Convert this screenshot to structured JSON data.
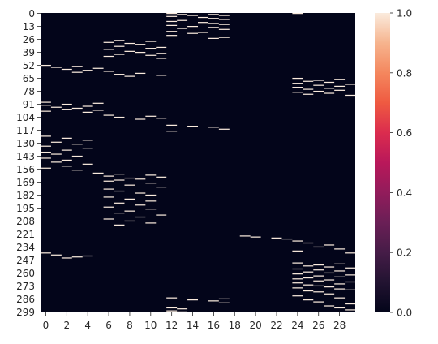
{
  "chart_data": {
    "type": "heatmap",
    "title": "",
    "xlabel": "",
    "ylabel": "",
    "n_rows": 300,
    "n_cols": 30,
    "x_tick_labels": [
      "0",
      "2",
      "4",
      "6",
      "8",
      "10",
      "12",
      "14",
      "16",
      "18",
      "20",
      "22",
      "24",
      "26",
      "28"
    ],
    "y_tick_labels": [
      "0",
      "13",
      "26",
      "39",
      "52",
      "65",
      "78",
      "91",
      "104",
      "117",
      "130",
      "143",
      "156",
      "169",
      "182",
      "195",
      "208",
      "221",
      "234",
      "247",
      "260",
      "273",
      "286",
      "299"
    ],
    "colorbar": {
      "min": 0.0,
      "max": 1.0,
      "tick_labels": [
        "0.0",
        "0.2",
        "0.4",
        "0.6",
        "0.8",
        "1.0"
      ],
      "colormap": "rocket"
    },
    "ones": [
      [
        0,
        12
      ],
      [
        0,
        24
      ],
      [
        1,
        13
      ],
      [
        1,
        16
      ],
      [
        2,
        14
      ],
      [
        2,
        17
      ],
      [
        3,
        12
      ],
      [
        4,
        15
      ],
      [
        5,
        16
      ],
      [
        6,
        17
      ],
      [
        7,
        13
      ],
      [
        8,
        12
      ],
      [
        9,
        15
      ],
      [
        10,
        16
      ],
      [
        11,
        17
      ],
      [
        12,
        12
      ],
      [
        13,
        14
      ],
      [
        14,
        16
      ],
      [
        15,
        13
      ],
      [
        16,
        17
      ],
      [
        18,
        12
      ],
      [
        19,
        15
      ],
      [
        20,
        14
      ],
      [
        22,
        12
      ],
      [
        24,
        17
      ],
      [
        25,
        16
      ],
      [
        27,
        7
      ],
      [
        28,
        10
      ],
      [
        29,
        6
      ],
      [
        30,
        8
      ],
      [
        31,
        9
      ],
      [
        33,
        7
      ],
      [
        34,
        11
      ],
      [
        35,
        10
      ],
      [
        36,
        6
      ],
      [
        38,
        8
      ],
      [
        39,
        9
      ],
      [
        40,
        11
      ],
      [
        41,
        7
      ],
      [
        42,
        10
      ],
      [
        43,
        6
      ],
      [
        45,
        11
      ],
      [
        52,
        0
      ],
      [
        53,
        3
      ],
      [
        54,
        1
      ],
      [
        55,
        5
      ],
      [
        56,
        2
      ],
      [
        57,
        4
      ],
      [
        58,
        6
      ],
      [
        59,
        3
      ],
      [
        60,
        9
      ],
      [
        61,
        7
      ],
      [
        62,
        11
      ],
      [
        63,
        8
      ],
      [
        65,
        24
      ],
      [
        66,
        28
      ],
      [
        67,
        26
      ],
      [
        68,
        25
      ],
      [
        69,
        27
      ],
      [
        70,
        24
      ],
      [
        71,
        29
      ],
      [
        72,
        26
      ],
      [
        73,
        28
      ],
      [
        74,
        24
      ],
      [
        75,
        27
      ],
      [
        76,
        25
      ],
      [
        77,
        28
      ],
      [
        78,
        26
      ],
      [
        79,
        24
      ],
      [
        80,
        27
      ],
      [
        81,
        25
      ],
      [
        82,
        29
      ],
      [
        89,
        0
      ],
      [
        90,
        5
      ],
      [
        91,
        2
      ],
      [
        92,
        0
      ],
      [
        93,
        4
      ],
      [
        94,
        1
      ],
      [
        95,
        3
      ],
      [
        96,
        2
      ],
      [
        97,
        5
      ],
      [
        98,
        0
      ],
      [
        99,
        4
      ],
      [
        102,
        6
      ],
      [
        103,
        10
      ],
      [
        104,
        7
      ],
      [
        105,
        11
      ],
      [
        106,
        9
      ],
      [
        112,
        12
      ],
      [
        113,
        14
      ],
      [
        114,
        16
      ],
      [
        116,
        17
      ],
      [
        118,
        12
      ],
      [
        123,
        0
      ],
      [
        125,
        2
      ],
      [
        127,
        4
      ],
      [
        129,
        1
      ],
      [
        131,
        3
      ],
      [
        133,
        0
      ],
      [
        135,
        4
      ],
      [
        137,
        2
      ],
      [
        139,
        0
      ],
      [
        141,
        1
      ],
      [
        143,
        3
      ],
      [
        145,
        0
      ],
      [
        147,
        2
      ],
      [
        149,
        1
      ],
      [
        151,
        4
      ],
      [
        153,
        2
      ],
      [
        155,
        0
      ],
      [
        157,
        3
      ],
      [
        160,
        5
      ],
      [
        161,
        7
      ],
      [
        162,
        10
      ],
      [
        163,
        6
      ],
      [
        164,
        11
      ],
      [
        165,
        8
      ],
      [
        166,
        9
      ],
      [
        167,
        7
      ],
      [
        168,
        6
      ],
      [
        170,
        10
      ],
      [
        172,
        8
      ],
      [
        174,
        11
      ],
      [
        176,
        6
      ],
      [
        178,
        7
      ],
      [
        180,
        9
      ],
      [
        182,
        10
      ],
      [
        184,
        6
      ],
      [
        186,
        8
      ],
      [
        188,
        10
      ],
      [
        190,
        7
      ],
      [
        192,
        9
      ],
      [
        194,
        6
      ],
      [
        196,
        10
      ],
      [
        198,
        8
      ],
      [
        200,
        7
      ],
      [
        202,
        11
      ],
      [
        204,
        9
      ],
      [
        206,
        6
      ],
      [
        208,
        8
      ],
      [
        210,
        10
      ],
      [
        212,
        7
      ],
      [
        223,
        19
      ],
      [
        224,
        20
      ],
      [
        225,
        22
      ],
      [
        226,
        23
      ],
      [
        228,
        24
      ],
      [
        230,
        25
      ],
      [
        232,
        27
      ],
      [
        234,
        26
      ],
      [
        236,
        28
      ],
      [
        238,
        24
      ],
      [
        240,
        29
      ],
      [
        240,
        0
      ],
      [
        242,
        1
      ],
      [
        243,
        4
      ],
      [
        244,
        3
      ],
      [
        245,
        2
      ],
      [
        250,
        24
      ],
      [
        251,
        28
      ],
      [
        252,
        26
      ],
      [
        253,
        25
      ],
      [
        254,
        27
      ],
      [
        255,
        29
      ],
      [
        256,
        24
      ],
      [
        257,
        26
      ],
      [
        258,
        28
      ],
      [
        259,
        25
      ],
      [
        260,
        27
      ],
      [
        261,
        24
      ],
      [
        262,
        29
      ],
      [
        263,
        26
      ],
      [
        264,
        28
      ],
      [
        265,
        25
      ],
      [
        266,
        24
      ],
      [
        267,
        27
      ],
      [
        268,
        26
      ],
      [
        269,
        29
      ],
      [
        270,
        24
      ],
      [
        271,
        28
      ],
      [
        272,
        25
      ],
      [
        273,
        26
      ],
      [
        274,
        27
      ],
      [
        275,
        24
      ],
      [
        276,
        28
      ],
      [
        277,
        29
      ],
      [
        278,
        25
      ],
      [
        279,
        26
      ],
      [
        281,
        27
      ],
      [
        283,
        24
      ],
      [
        285,
        28
      ],
      [
        287,
        25
      ],
      [
        289,
        26
      ],
      [
        291,
        29
      ],
      [
        293,
        27
      ],
      [
        295,
        28
      ],
      [
        297,
        29
      ],
      [
        285,
        12
      ],
      [
        286,
        17
      ],
      [
        287,
        14
      ],
      [
        288,
        16
      ],
      [
        290,
        17
      ],
      [
        295,
        12
      ],
      [
        296,
        13
      ],
      [
        298,
        12
      ],
      [
        299,
        13
      ]
    ]
  }
}
